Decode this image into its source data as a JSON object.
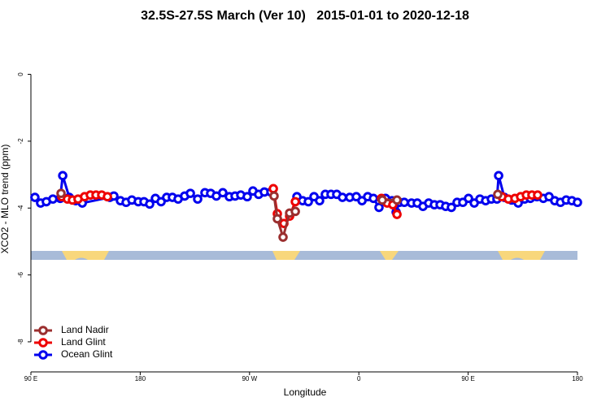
{
  "chart_data": {
    "type": "line",
    "title": "32.5S-27.5S March (Ver 10)   2015-01-01 to 2020-12-18",
    "x_label": "Longitude",
    "y_label": "XCO2 - MLO trend (ppm)",
    "xlim": [
      90,
      540
    ],
    "ylim": [
      -8.9,
      1.3
    ],
    "xticks": [
      {
        "value": 90,
        "label": "90 E"
      },
      180,
      {
        "value": 270,
        "label": "90 W"
      },
      {
        "value": 360,
        "label": "0"
      },
      {
        "value": 450,
        "label": "90 E"
      },
      {
        "value": 540,
        "label": "180"
      }
    ],
    "yticks": [
      0,
      -2,
      -4,
      -6,
      -8
    ],
    "legend": "bottom-left",
    "series": [
      {
        "name": "Land Nadir",
        "color": "#9b2f2f",
        "x": [
          114.8,
          null,
          290.2,
          292.9,
          297.6,
          303.0,
          307.7,
          null,
          379.3,
          391.4,
          null,
          474.4
        ],
        "values": [
          -3.56,
          null,
          -3.64,
          -4.32,
          -4.87,
          -4.15,
          -4.1,
          null,
          -3.76,
          -3.76,
          null,
          -3.59
        ]
      },
      {
        "name": "Land Glint",
        "color": "#ee0000",
        "x": [
          115.4,
          120.1,
          124.2,
          128.8,
          134.2,
          138.9,
          143.6,
          148.3,
          153.0,
          null,
          289.6,
          292.9,
          298.3,
          303.0,
          307.7,
          null,
          378.6,
          383.3,
          388.0,
          391.4,
          null,
          477.8,
          483.1,
          488.5,
          493.2,
          497.9,
          502.5,
          507.2
        ],
        "values": [
          -3.66,
          -3.73,
          -3.76,
          -3.73,
          -3.66,
          -3.61,
          -3.61,
          -3.61,
          -3.66,
          null,
          -3.42,
          -4.17,
          -4.46,
          -4.24,
          -3.81,
          null,
          -3.71,
          -3.85,
          -3.9,
          -4.19,
          null,
          -3.66,
          -3.73,
          -3.71,
          -3.66,
          -3.61,
          -3.61,
          -3.61
        ]
      },
      {
        "name": "Ocean Glint",
        "color": "#0000ee",
        "x": [
          93.3,
          98.0,
          102.7,
          108.1,
          114.1,
          116.2,
          121.6,
          126.9,
          132.3,
          155.0,
          158.3,
          163.7,
          168.4,
          173.1,
          178.4,
          183.1,
          187.8,
          192.5,
          197.2,
          201.8,
          206.5,
          211.2,
          216.6,
          221.3,
          227.3,
          233.3,
          238.0,
          242.7,
          248.0,
          253.4,
          258.1,
          262.8,
          268.1,
          272.8,
          277.5,
          282.2,
          287.6,
          null,
          309.0,
          313.7,
          318.4,
          323.1,
          327.7,
          332.4,
          337.1,
          341.8,
          346.5,
          352.5,
          357.9,
          362.6,
          367.3,
          372.0,
          376.6,
          382.0,
          387.3,
          390.7,
          393.4,
          397.4,
          403.4,
          408.1,
          412.8,
          417.5,
          422.2,
          426.9,
          431.5,
          436.2,
          440.9,
          445.6,
          450.3,
          455.0,
          459.7,
          464.4,
          469.1,
          473.7,
          475.1,
          479.8,
          485.8,
          491.2,
          496.5,
          501.2,
          506.6,
          511.9,
          516.6,
          521.3,
          526.0,
          530.7,
          535.4,
          540.0
        ],
        "values": [
          -3.68,
          -3.85,
          -3.81,
          -3.73,
          -3.71,
          -3.03,
          -3.68,
          -3.78,
          -3.85,
          -3.68,
          -3.64,
          -3.78,
          -3.83,
          -3.76,
          -3.81,
          -3.81,
          -3.88,
          -3.71,
          -3.81,
          -3.68,
          -3.68,
          -3.73,
          -3.64,
          -3.56,
          -3.73,
          -3.54,
          -3.56,
          -3.64,
          -3.54,
          -3.66,
          -3.64,
          -3.61,
          -3.66,
          -3.49,
          -3.59,
          -3.52,
          -3.52,
          null,
          -3.66,
          -3.78,
          -3.81,
          -3.66,
          -3.78,
          -3.59,
          -3.59,
          -3.59,
          -3.68,
          -3.68,
          -3.66,
          -3.78,
          -3.66,
          -3.71,
          -3.98,
          -3.71,
          -3.78,
          -4.12,
          -3.83,
          -3.83,
          -3.85,
          -3.85,
          -3.95,
          -3.85,
          -3.9,
          -3.9,
          -3.95,
          -3.98,
          -3.83,
          -3.83,
          -3.71,
          -3.85,
          -3.73,
          -3.78,
          -3.73,
          -3.73,
          -3.03,
          -3.68,
          -3.76,
          -3.85,
          -3.73,
          -3.71,
          -3.66,
          -3.71,
          -3.66,
          -3.78,
          -3.83,
          -3.76,
          -3.78,
          -3.83
        ]
      }
    ]
  }
}
